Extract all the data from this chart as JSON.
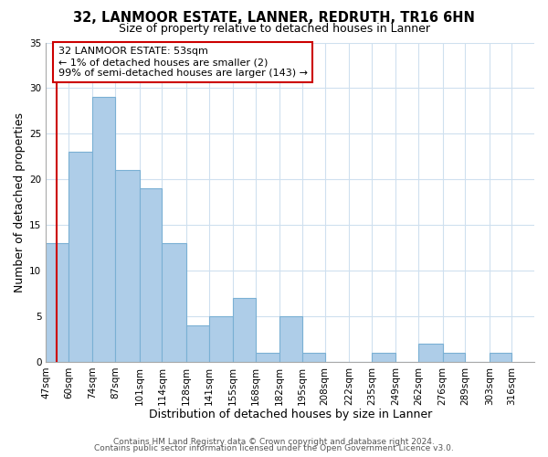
{
  "title": "32, LANMOOR ESTATE, LANNER, REDRUTH, TR16 6HN",
  "subtitle": "Size of property relative to detached houses in Lanner",
  "xlabel": "Distribution of detached houses by size in Lanner",
  "ylabel": "Number of detached properties",
  "bar_color": "#aecde8",
  "bar_edge_color": "#7ab0d4",
  "bin_edges": [
    47,
    60,
    74,
    87,
    101,
    114,
    128,
    141,
    155,
    168,
    182,
    195,
    208,
    222,
    235,
    249,
    262,
    276,
    289,
    303,
    316
  ],
  "bar_heights": [
    13,
    23,
    29,
    21,
    19,
    13,
    4,
    5,
    7,
    1,
    5,
    1,
    0,
    0,
    1,
    0,
    2,
    1,
    0,
    1
  ],
  "xlim_min": 47,
  "xlim_max": 329,
  "ylim_min": 0,
  "ylim_max": 35,
  "yticks": [
    0,
    5,
    10,
    15,
    20,
    25,
    30,
    35
  ],
  "xtick_labels": [
    "47sqm",
    "60sqm",
    "74sqm",
    "87sqm",
    "101sqm",
    "114sqm",
    "128sqm",
    "141sqm",
    "155sqm",
    "168sqm",
    "182sqm",
    "195sqm",
    "208sqm",
    "222sqm",
    "235sqm",
    "249sqm",
    "262sqm",
    "276sqm",
    "289sqm",
    "303sqm",
    "316sqm"
  ],
  "property_size": 53,
  "red_line_color": "#cc0000",
  "annotation_line1": "32 LANMOOR ESTATE: 53sqm",
  "annotation_line2": "← 1% of detached houses are smaller (2)",
  "annotation_line3": "99% of semi-detached houses are larger (143) →",
  "annotation_box_color": "#ffffff",
  "annotation_box_edge": "#cc0000",
  "footer_line1": "Contains HM Land Registry data © Crown copyright and database right 2024.",
  "footer_line2": "Contains public sector information licensed under the Open Government Licence v3.0.",
  "bg_color": "#ffffff",
  "grid_color": "#cfe0ef",
  "title_fontsize": 10.5,
  "subtitle_fontsize": 9,
  "axis_label_fontsize": 9,
  "tick_fontsize": 7.5,
  "annotation_fontsize": 8,
  "footer_fontsize": 6.5
}
